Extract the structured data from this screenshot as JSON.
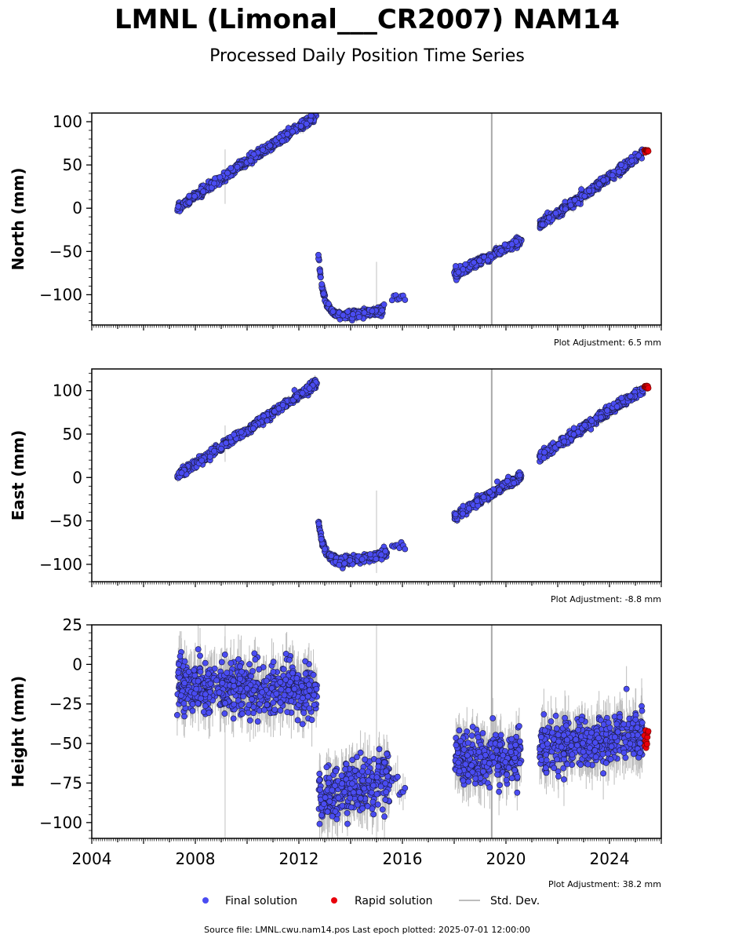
{
  "title": "LMNL (Limonal___CR2007) NAM14",
  "subtitle": "Processed Daily Position Time Series",
  "source_line": "Source file: LMNL.cwu.nam14.pos  Last epoch plotted: 2025-07-01 12:00:00",
  "legend": {
    "final": "Final solution",
    "rapid": "Rapid solution",
    "std": "Std. Dev."
  },
  "colors": {
    "final": "#4a4cf2",
    "rapid": "#e8000b",
    "std": "#bdbdbd",
    "marker_edge": "#1a1a3a"
  },
  "chart_data": [
    {
      "type": "scatter",
      "ylabel": "North (mm)",
      "ylim": [
        -135,
        110
      ],
      "yticks": [
        100,
        50,
        0,
        -50,
        -100
      ],
      "ytick_labels": [
        "100",
        "50",
        "0",
        "−50",
        "−100"
      ],
      "xlim": [
        2004,
        2026
      ],
      "adjustment": "Plot Adjustment: 6.5 mm",
      "segments": [
        {
          "x0": 2007.3,
          "x1": 2012.7,
          "y0": 0,
          "y1": 108,
          "noise": 2.5,
          "shape": "linear"
        },
        {
          "x0": 2012.75,
          "x1": 2015.3,
          "y0": -55,
          "y1": -112,
          "noise": 2.5,
          "shape": "decay",
          "floor": -125
        },
        {
          "x0": 2015.6,
          "x1": 2016.1,
          "y0": -105,
          "y1": -103,
          "noise": 2.0,
          "shape": "linear",
          "sparse": true
        },
        {
          "x0": 2018.0,
          "x1": 2020.6,
          "y0": -76,
          "y1": -37,
          "noise": 2.5,
          "shape": "linear"
        },
        {
          "x0": 2021.3,
          "x1": 2025.3,
          "y0": -20,
          "y1": 63,
          "noise": 2.5,
          "shape": "linear"
        }
      ],
      "rapid": {
        "x0": 2025.35,
        "x1": 2025.5,
        "y": 66,
        "spread": 2
      },
      "vlines": [
        {
          "x": 2009.15,
          "y0": 5,
          "y1": 68
        },
        {
          "x": 2015.0,
          "y0": -125,
          "y1": -62
        },
        {
          "x": 2019.45,
          "full": true
        }
      ]
    },
    {
      "type": "scatter",
      "ylabel": "East (mm)",
      "ylim": [
        -120,
        125
      ],
      "yticks": [
        100,
        50,
        0,
        -50,
        -100
      ],
      "ytick_labels": [
        "100",
        "50",
        "0",
        "−50",
        "−100"
      ],
      "xlim": [
        2004,
        2026
      ],
      "adjustment": "Plot Adjustment: -8.8 mm",
      "segments": [
        {
          "x0": 2007.3,
          "x1": 2012.7,
          "y0": 2,
          "y1": 108,
          "noise": 2.5,
          "shape": "linear"
        },
        {
          "x0": 2012.75,
          "x1": 2015.4,
          "y0": -50,
          "y1": -80,
          "noise": 2.5,
          "shape": "decay",
          "floor": -98
        },
        {
          "x0": 2015.6,
          "x1": 2016.1,
          "y0": -80,
          "y1": -79,
          "noise": 2.0,
          "shape": "linear",
          "sparse": true
        },
        {
          "x0": 2018.0,
          "x1": 2020.6,
          "y0": -45,
          "y1": 3,
          "noise": 2.5,
          "shape": "linear"
        },
        {
          "x0": 2021.3,
          "x1": 2025.3,
          "y0": 24,
          "y1": 102,
          "noise": 2.5,
          "shape": "linear"
        }
      ],
      "rapid": {
        "x0": 2025.35,
        "x1": 2025.5,
        "y": 104,
        "spread": 2
      },
      "vlines": [
        {
          "x": 2009.15,
          "y0": 18,
          "y1": 60
        },
        {
          "x": 2015.0,
          "y0": -110,
          "y1": -15
        },
        {
          "x": 2019.45,
          "full": true
        }
      ]
    },
    {
      "type": "scatter",
      "ylabel": "Height (mm)",
      "ylim": [
        -110,
        25
      ],
      "yticks": [
        25,
        0,
        -25,
        -50,
        -75,
        -100
      ],
      "ytick_labels": [
        "25",
        "0",
        "−25",
        "−50",
        "−75",
        "−100"
      ],
      "xlim": [
        2004,
        2026
      ],
      "xticks": [
        2004,
        2008,
        2012,
        2016,
        2020,
        2024
      ],
      "xtick_labels": [
        "2004",
        "2008",
        "2012",
        "2016",
        "2020",
        "2024"
      ],
      "adjustment": "Plot Adjustment: 38.2 mm",
      "segments": [
        {
          "x0": 2007.3,
          "x1": 2012.7,
          "y0": -12,
          "y1": -18,
          "noise": 8,
          "shape": "linear"
        },
        {
          "x0": 2012.75,
          "x1": 2015.5,
          "y0": -85,
          "y1": -72,
          "noise": 8,
          "shape": "linear"
        },
        {
          "x0": 2015.6,
          "x1": 2016.1,
          "y0": -75,
          "y1": -78,
          "noise": 7,
          "shape": "linear",
          "sparse": true
        },
        {
          "x0": 2018.0,
          "x1": 2020.6,
          "y0": -58,
          "y1": -60,
          "noise": 8,
          "shape": "linear"
        },
        {
          "x0": 2021.3,
          "x1": 2025.3,
          "y0": -52,
          "y1": -45,
          "noise": 8,
          "shape": "linear"
        }
      ],
      "rapid": {
        "x0": 2025.35,
        "x1": 2025.5,
        "y": -47,
        "spread": 6
      },
      "vlines": [
        {
          "x": 2009.15,
          "y0": -110,
          "y1": 25
        },
        {
          "x": 2015.0,
          "y0": -110,
          "y1": 25
        },
        {
          "x": 2019.45,
          "full": true
        }
      ]
    }
  ]
}
